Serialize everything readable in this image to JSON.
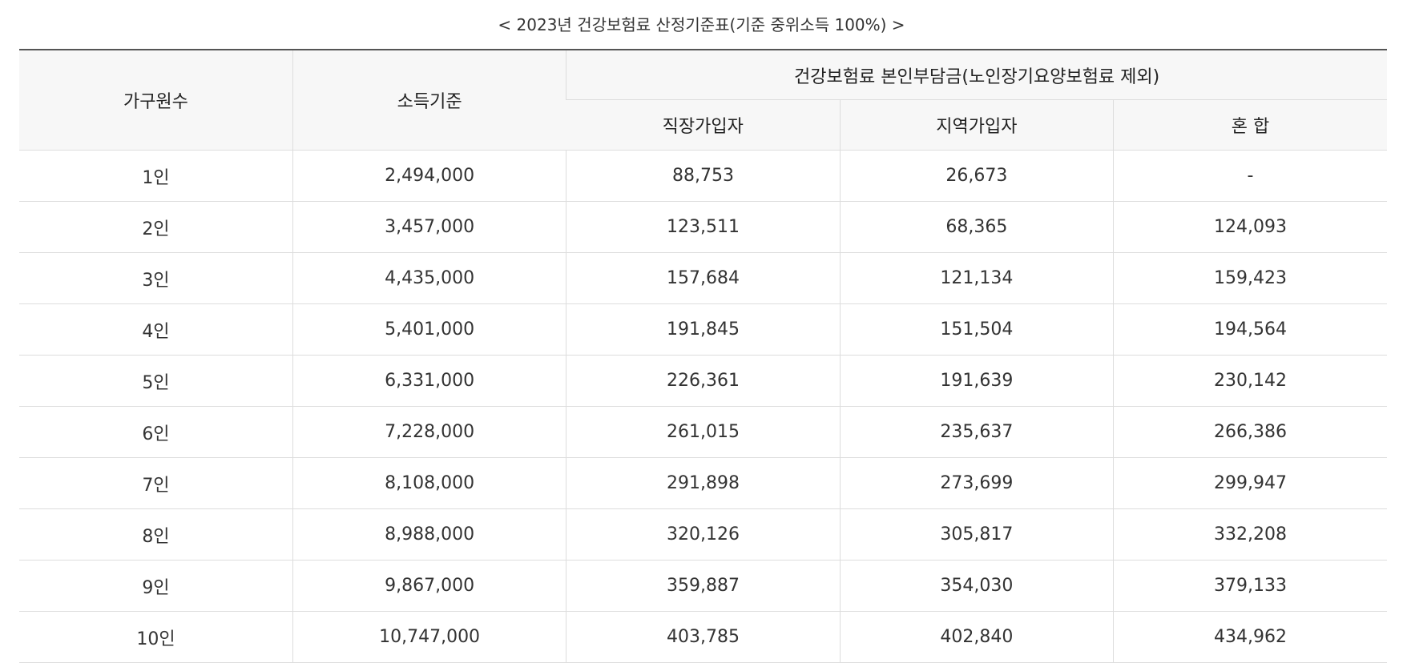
{
  "caption": "< 2023년 건강보험료 산정기준표(기준 중위소득 100%) >",
  "table": {
    "headers": {
      "household": "가구원수",
      "income": "소득기준",
      "premium_group": "건강보험료 본인부담금(노인장기요양보험료 제외)",
      "workplace": "직장가입자",
      "regional": "지역가입자",
      "mixed": "혼 합"
    },
    "rows": [
      {
        "household": "1인",
        "income": "2,494,000",
        "workplace": "88,753",
        "regional": "26,673",
        "mixed": "-"
      },
      {
        "household": "2인",
        "income": "3,457,000",
        "workplace": "123,511",
        "regional": "68,365",
        "mixed": "124,093"
      },
      {
        "household": "3인",
        "income": "4,435,000",
        "workplace": "157,684",
        "regional": "121,134",
        "mixed": "159,423"
      },
      {
        "household": "4인",
        "income": "5,401,000",
        "workplace": "191,845",
        "regional": "151,504",
        "mixed": "194,564"
      },
      {
        "household": "5인",
        "income": "6,331,000",
        "workplace": "226,361",
        "regional": "191,639",
        "mixed": "230,142"
      },
      {
        "household": "6인",
        "income": "7,228,000",
        "workplace": "261,015",
        "regional": "235,637",
        "mixed": "266,386"
      },
      {
        "household": "7인",
        "income": "8,108,000",
        "workplace": "291,898",
        "regional": "273,699",
        "mixed": "299,947"
      },
      {
        "household": "8인",
        "income": "8,988,000",
        "workplace": "320,126",
        "regional": "305,817",
        "mixed": "332,208"
      },
      {
        "household": "9인",
        "income": "9,867,000",
        "workplace": "359,887",
        "regional": "354,030",
        "mixed": "379,133"
      },
      {
        "household": "10인",
        "income": "10,747,000",
        "workplace": "403,785",
        "regional": "402,840",
        "mixed": "434,962"
      }
    ]
  }
}
